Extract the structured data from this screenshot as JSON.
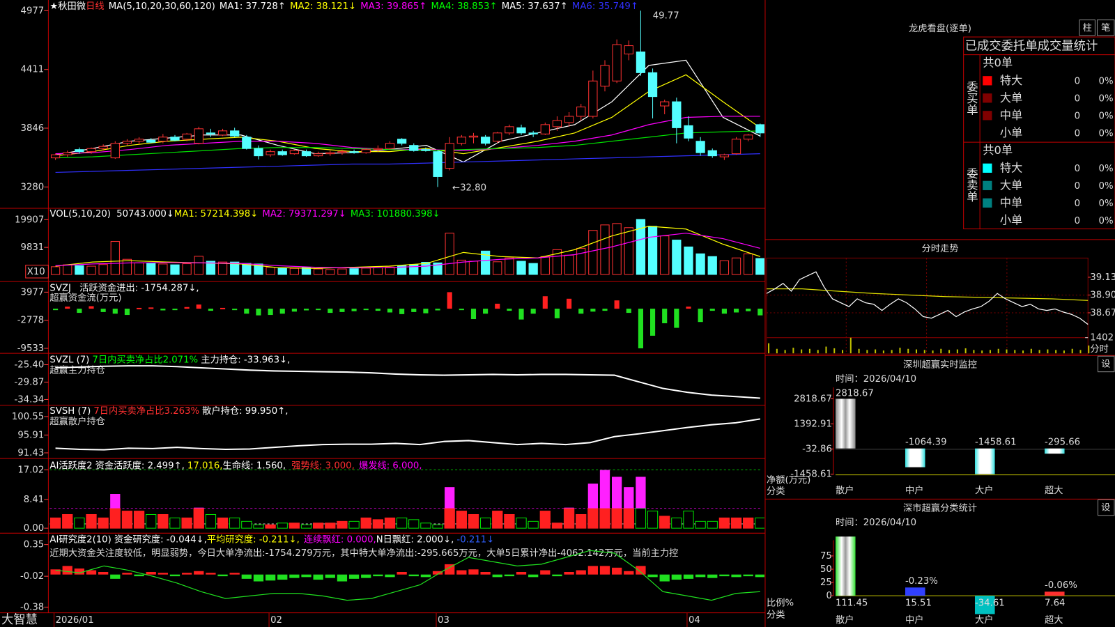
{
  "main": {
    "stock": "★秋田微",
    "period": "日线",
    "ma_title": "MA(5,10,20,30,60,120)",
    "ma": [
      "MA1: 37.728↑",
      "MA2: 38.121↓",
      "MA3: 39.865↑",
      "MA4: 38.853↑",
      "MA5: 37.637↑",
      "MA6: 35.749↑"
    ],
    "high_label": "49.77",
    "low_label": "←32.80",
    "yticks": [
      4977,
      4411,
      3846,
      3280
    ],
    "candles": [
      [
        3560,
        3600,
        3540,
        3590
      ],
      [
        3590,
        3630,
        3570,
        3610
      ],
      [
        3640,
        3660,
        3600,
        3620
      ],
      [
        3620,
        3660,
        3600,
        3650
      ],
      [
        3650,
        3690,
        3630,
        3670
      ],
      [
        3560,
        3720,
        3550,
        3700
      ],
      [
        3700,
        3740,
        3680,
        3720
      ],
      [
        3720,
        3760,
        3690,
        3740
      ],
      [
        3730,
        3750,
        3700,
        3710
      ],
      [
        3720,
        3790,
        3700,
        3760
      ],
      [
        3760,
        3780,
        3720,
        3730
      ],
      [
        3740,
        3800,
        3720,
        3790
      ],
      [
        3700,
        3860,
        3690,
        3840
      ],
      [
        3800,
        3840,
        3760,
        3790
      ],
      [
        3780,
        3840,
        3770,
        3820
      ],
      [
        3820,
        3850,
        3760,
        3770
      ],
      [
        3760,
        3780,
        3640,
        3650
      ],
      [
        3650,
        3680,
        3545,
        3580
      ],
      [
        3590,
        3640,
        3570,
        3620
      ],
      [
        3620,
        3640,
        3580,
        3590
      ],
      [
        3600,
        3640,
        3590,
        3630
      ],
      [
        3620,
        3640,
        3570,
        3580
      ],
      [
        3580,
        3620,
        3570,
        3600
      ],
      [
        3600,
        3630,
        3580,
        3610
      ],
      [
        3610,
        3640,
        3590,
        3620
      ],
      [
        3620,
        3640,
        3600,
        3610
      ],
      [
        3610,
        3650,
        3600,
        3640
      ],
      [
        3640,
        3680,
        3620,
        3650
      ],
      [
        3650,
        3720,
        3640,
        3700
      ],
      [
        3740,
        3750,
        3680,
        3700
      ],
      [
        3680,
        3700,
        3620,
        3630
      ],
      [
        3640,
        3660,
        3620,
        3630
      ],
      [
        3620,
        3630,
        3280,
        3380
      ],
      [
        3460,
        3760,
        3440,
        3700
      ],
      [
        3700,
        3780,
        3680,
        3760
      ],
      [
        3760,
        3800,
        3700,
        3770
      ],
      [
        3760,
        3780,
        3680,
        3700
      ],
      [
        3720,
        3810,
        3700,
        3800
      ],
      [
        3800,
        3880,
        3780,
        3860
      ],
      [
        3850,
        3880,
        3780,
        3800
      ],
      [
        3800,
        3820,
        3760,
        3790
      ],
      [
        3790,
        3900,
        3780,
        3880
      ],
      [
        3860,
        3960,
        3820,
        3920
      ],
      [
        3900,
        4000,
        3860,
        3960
      ],
      [
        3960,
        4080,
        3920,
        4050
      ],
      [
        3960,
        4400,
        3940,
        4300
      ],
      [
        4250,
        4500,
        4200,
        4450
      ],
      [
        4300,
        4700,
        4280,
        4650
      ],
      [
        4560,
        4690,
        4500,
        4640
      ],
      [
        4580,
        4977,
        4350,
        4380
      ],
      [
        4380,
        4420,
        3940,
        4150
      ],
      [
        4060,
        4120,
        3980,
        4100
      ],
      [
        4100,
        4140,
        3700,
        3850
      ],
      [
        3870,
        3960,
        3720,
        3750
      ],
      [
        3720,
        3760,
        3580,
        3610
      ],
      [
        3630,
        3650,
        3560,
        3580
      ],
      [
        3570,
        3600,
        3540,
        3590
      ],
      [
        3600,
        3760,
        3590,
        3740
      ],
      [
        3740,
        3790,
        3720,
        3780
      ],
      [
        3880,
        3890,
        3760,
        3800
      ]
    ],
    "ma_lines": [
      {
        "color": "#ffffff",
        "values": [
          3590,
          3650,
          3720,
          3750,
          3780,
          3780,
          3680,
          3600,
          3610,
          3640,
          3680,
          3520,
          3720,
          3800,
          3880,
          4100,
          4450,
          4500,
          3950,
          3770
        ]
      },
      {
        "color": "#ffff00",
        "values": [
          3580,
          3620,
          3680,
          3720,
          3740,
          3760,
          3720,
          3650,
          3620,
          3620,
          3650,
          3600,
          3660,
          3720,
          3800,
          3950,
          4200,
          4360,
          4100,
          3850
        ]
      },
      {
        "color": "#ff00ff",
        "values": [
          3600,
          3610,
          3640,
          3680,
          3700,
          3720,
          3720,
          3700,
          3660,
          3640,
          3640,
          3630,
          3650,
          3680,
          3720,
          3780,
          3880,
          3950,
          3960,
          3960
        ]
      },
      {
        "color": "#00e000",
        "values": [
          3560,
          3570,
          3590,
          3610,
          3630,
          3650,
          3660,
          3660,
          3650,
          3640,
          3630,
          3640,
          3650,
          3660,
          3680,
          3720,
          3760,
          3800,
          3810,
          3820
        ]
      },
      {
        "color": "#3030ff",
        "values": [
          3420,
          3430,
          3440,
          3450,
          3460,
          3470,
          3480,
          3490,
          3500,
          3500,
          3510,
          3520,
          3530,
          3540,
          3550,
          3560,
          3570,
          3580,
          3590,
          3600
        ]
      }
    ],
    "dates": [
      "2026/01",
      null,
      null,
      null,
      null,
      null,
      null,
      null,
      null,
      null,
      null,
      null,
      null,
      null,
      null,
      null,
      null,
      null,
      "02",
      null,
      null,
      null,
      null,
      null,
      null,
      null,
      null,
      null,
      null,
      null,
      null,
      null,
      "03",
      null,
      null,
      null,
      null,
      null,
      null,
      null,
      null,
      null,
      null,
      null,
      null,
      null,
      null,
      null,
      null,
      null,
      null,
      null,
      null,
      "04",
      null,
      null,
      null,
      null,
      null,
      null
    ]
  },
  "vol": {
    "title": "VOL(5,10,20)",
    "value": "50743.000↓",
    "ma": [
      "MA1: 57214.398↓",
      "MA2: 79371.297↓",
      "MA3: 101880.398↓"
    ],
    "yticks": [
      19907,
      9831
    ],
    "unit": "X10",
    "values": [
      2800,
      3500,
      3200,
      3000,
      3600,
      12000,
      5500,
      4200,
      4000,
      3800,
      3500,
      3900,
      6600,
      4800,
      4500,
      4500,
      4000,
      3800,
      2600,
      2400,
      2200,
      2600,
      2000,
      1800,
      2000,
      2100,
      2300,
      2500,
      2700,
      3200,
      3600,
      4400,
      4200,
      15000,
      5200,
      4800,
      8500,
      4600,
      6000,
      4800,
      4000,
      6500,
      9000,
      7000,
      9500,
      16000,
      18000,
      18500,
      17000,
      20000,
      17500,
      14000,
      12500,
      10000,
      7500,
      6500,
      5000,
      6000,
      7500,
      5800
    ],
    "ma_lines": [
      {
        "color": "#ffff00",
        "values": [
          3000,
          4500,
          5000,
          4500,
          4200,
          3800,
          2500,
          2200,
          2600,
          3000,
          4000,
          8000,
          6500,
          6000,
          9000,
          14000,
          17500,
          16500,
          11000,
          6500
        ]
      },
      {
        "color": "#ff00ff",
        "values": [
          3200,
          3800,
          4200,
          4300,
          4200,
          4000,
          3200,
          2600,
          2400,
          2500,
          3000,
          4500,
          5500,
          6000,
          7200,
          10000,
          13500,
          15000,
          13000,
          9500
        ]
      }
    ]
  },
  "svzj": {
    "title": "SVZJ",
    "value": "活跃资金进出: -1754.287↓,",
    "subtitle": "超赢资金流(万元)",
    "yticks": [
      3977,
      -2778,
      -9533
    ],
    "values": [
      -300,
      500,
      -1000,
      600,
      -800,
      -1200,
      -1500,
      200,
      300,
      -400,
      -200,
      400,
      1000,
      -500,
      200,
      -300,
      -1200,
      -1600,
      -1500,
      -1200,
      -700,
      -400,
      -300,
      -1000,
      -800,
      -600,
      -300,
      -500,
      -900,
      -1300,
      -800,
      -1100,
      -400,
      3977,
      -300,
      -2500,
      -1200,
      1200,
      -500,
      -2600,
      -1200,
      3000,
      -2300,
      2400,
      -1200,
      -700,
      -500,
      2000,
      -1000,
      -9533,
      -6500,
      -3500,
      -4600,
      500,
      -3200,
      -500,
      -1200,
      -900,
      -600,
      -1600
    ]
  },
  "svzl": {
    "title": "SVZL (7)",
    "ratio": "7日内买卖净占比2.071%",
    "value": "主力持仓: -33.963↓,",
    "subtitle": "超赢主力持仓",
    "yticks": [
      {
        "value": -25.4,
        "label": "-25.40"
      },
      -29.87,
      -34.34
    ],
    "values": [
      -26.2,
      -26.0,
      -25.8,
      -25.7,
      -25.7,
      -25.9,
      -26.2,
      -26.5,
      -26.8,
      -27.0,
      -27.1,
      -27.2,
      -27.3,
      -27.5,
      -27.8,
      -28.0,
      -28.1,
      -28.0,
      -27.9,
      -28.0,
      -27.9,
      -27.9,
      -28.0,
      -28.1,
      -29.8,
      -31.5,
      -32.5,
      -33.2,
      -33.6,
      -34.0
    ]
  },
  "svsh": {
    "title": "SVSH (7)",
    "ratio": "7日内买卖净占比3.263%",
    "value": "散户持仓: 99.950↑,",
    "subtitle": "超赢散户持仓",
    "yticks": [
      100.55,
      95.91,
      91.43
    ],
    "values": [
      92.6,
      92.3,
      92.2,
      92.6,
      92.5,
      92.8,
      92.5,
      92.3,
      92.4,
      92.8,
      93.2,
      93.5,
      93.6,
      93.6,
      93.8,
      93.5,
      94.3,
      94.5,
      94.0,
      93.5,
      93.8,
      93.5,
      94.0,
      95.5,
      96.2,
      97.0,
      97.8,
      98.5,
      99.0,
      99.95
    ]
  },
  "ai1": {
    "title": "AI活跃度2",
    "value": "资金活跃度: 2.499↑,",
    "v2": "17.016,",
    "life": "生命线: 1.560,",
    "strong": "强势线: 3.000,",
    "burst": "爆发线: 6.000,",
    "yticks": [
      17.02,
      8.41,
      {
        "value": 0,
        "label": "0.00"
      }
    ],
    "values": [
      3,
      4,
      3,
      4,
      3,
      10,
      5,
      5,
      4,
      4,
      3,
      3,
      6,
      4,
      3,
      3,
      2,
      1,
      1,
      1.5,
      1.5,
      1,
      1.5,
      1.5,
      2,
      2,
      3,
      2.5,
      3,
      3,
      2.5,
      1.5,
      1,
      12,
      5,
      4,
      3,
      5,
      4,
      3,
      2,
      5,
      1.5,
      6,
      4,
      13,
      17,
      15,
      12,
      15,
      5,
      3.5,
      3,
      5,
      2,
      2,
      3,
      3,
      3,
      3
    ]
  },
  "ai2": {
    "title": "AI研究度2(10)",
    "value": "资金研究度: -0.044↓,",
    "avg": "平均研究度: -0.211↓,",
    "red": "连续飘红: 0.000,",
    "nred": "N日飘红: 2.000↓,",
    "last": "-0.211↓",
    "comment": "近期大资金关注度较低，明显弱势，今日大单净流出:-1754.279万元，其中特大单净流出:-295.665万元，大单5日累计净出-4062.142万元，当前主力控",
    "yticks": [
      0.35,
      -0.02,
      -0.38
    ],
    "values": [
      0.06,
      0.1,
      0.07,
      0.05,
      0.03,
      -0.05,
      0.02,
      -0.02,
      0.03,
      0.02,
      -0.02,
      0.02,
      0.04,
      0.02,
      -0.02,
      0.02,
      -0.05,
      -0.08,
      -0.07,
      -0.06,
      -0.04,
      -0.03,
      -0.06,
      -0.04,
      -0.08,
      -0.05,
      -0.04,
      -0.02,
      -0.03,
      0.03,
      -0.02,
      -0.03,
      0.04,
      0.12,
      0.05,
      0.06,
      0.03,
      -0.03,
      -0.02,
      0.03,
      -0.03,
      0.05,
      -0.02,
      0.03,
      0.05,
      0.1,
      0.1,
      0.08,
      0.04,
      0.1,
      -0.03,
      -0.08,
      -0.06,
      -0.05,
      -0.03,
      -0.04,
      -0.02,
      -0.03,
      -0.02,
      -0.03
    ],
    "line": [
      0.05,
      0.02,
      0.1,
      0.05,
      -0.02,
      -0.1,
      -0.2,
      -0.28,
      -0.25,
      -0.22,
      -0.22,
      -0.25,
      -0.3,
      -0.28,
      -0.2,
      -0.12,
      0.05,
      0.2,
      0.15,
      0.1,
      0.12,
      0.2,
      0.28,
      0.25,
      0.05,
      -0.2,
      -0.25,
      -0.3,
      -0.22,
      -0.2
    ]
  },
  "footer": "大智慧",
  "dragon": {
    "title": "龙虎看盘(逐单)",
    "buttons": [
      "柱",
      "笔"
    ],
    "heading": "已成交委托单成交量统计",
    "buy": {
      "side": "委买单",
      "total": "共0单",
      "rows": [
        {
          "name": "特大",
          "count": "0",
          "pct": "0%",
          "color": "#ff0000"
        },
        {
          "name": "大单",
          "count": "0",
          "pct": "0%",
          "color": "#800000"
        },
        {
          "name": "中单",
          "count": "0",
          "pct": "0%",
          "color": "#800000"
        },
        {
          "name": "小单",
          "count": "0",
          "pct": "0%"
        }
      ]
    },
    "sell": {
      "side": "委卖单",
      "total": "共0单",
      "rows": [
        {
          "name": "特大",
          "count": "0",
          "pct": "0%",
          "color": "#00ffff"
        },
        {
          "name": "大单",
          "count": "0",
          "pct": "0%",
          "color": "#008080"
        },
        {
          "name": "中单",
          "count": "0",
          "pct": "0%",
          "color": "#008080"
        },
        {
          "name": "小单",
          "count": "0",
          "pct": "0%"
        }
      ]
    }
  },
  "fenshi": {
    "title": "分时走势",
    "yticks": [
      39.13,
      {
        "value": 38.9,
        "label": "38.90"
      },
      38.67
    ],
    "vol_tick": 1402,
    "vol_label": "分时",
    "values": [
      38.92,
      38.98,
      39.05,
      38.95,
      39.1,
      39.15,
      39.2,
      39.0,
      38.85,
      38.8,
      38.75,
      38.85,
      38.8,
      38.78,
      38.7,
      38.78,
      38.85,
      38.8,
      38.72,
      38.62,
      38.6,
      38.65,
      38.7,
      38.62,
      38.68,
      38.72,
      38.75,
      38.82,
      38.92,
      38.85,
      38.8,
      38.75,
      38.78,
      38.72,
      38.7,
      38.72,
      38.68,
      38.65,
      38.6,
      38.52
    ],
    "avg": [
      38.98,
      38.98,
      38.95,
      38.92,
      38.9,
      38.88,
      38.87,
      38.86,
      38.85,
      38.83
    ],
    "volumes": [
      900,
      400,
      300,
      500,
      350,
      400,
      300,
      600,
      450,
      300,
      1402,
      400,
      300,
      350,
      250,
      300,
      500,
      400,
      350,
      300,
      250,
      400,
      300,
      350,
      450,
      300,
      250,
      300,
      400,
      350,
      300,
      250,
      400,
      300,
      350,
      300,
      250,
      400,
      300,
      700
    ]
  },
  "sz": {
    "title": "深圳超赢实时监控",
    "button": "设",
    "time": "时间：2026/04/10",
    "ylabel": "净额(万元)",
    "xlabel": "分类",
    "yticks": [
      2818.67,
      1392.91,
      -32.86,
      -1458.61
    ],
    "categories": [
      "散户",
      "中户",
      "大户",
      "超大"
    ],
    "label_colors": [
      "#ff3030",
      "#00ffff",
      "#00ffff",
      "#ff30ff"
    ],
    "values": [
      2818.67,
      -1064.39,
      -1458.61,
      -295.66
    ]
  },
  "sm": {
    "title": "深市超赢分类统计",
    "button": "设",
    "time": "时间：2026/04/10",
    "ylabel": "比例%",
    "xlabel": "分类",
    "yticks": [
      75,
      50,
      25,
      0
    ],
    "categories": [
      "散户",
      "中户",
      "大户",
      "超大"
    ],
    "label_colors": [
      "#ffff40",
      "#4060ff",
      "#00ffff",
      "#ff3030"
    ],
    "values": [
      111.45,
      15.51,
      -34.61,
      7.64
    ],
    "pct_labels": [
      null,
      "-0.23%",
      null,
      "-0.06%"
    ]
  }
}
